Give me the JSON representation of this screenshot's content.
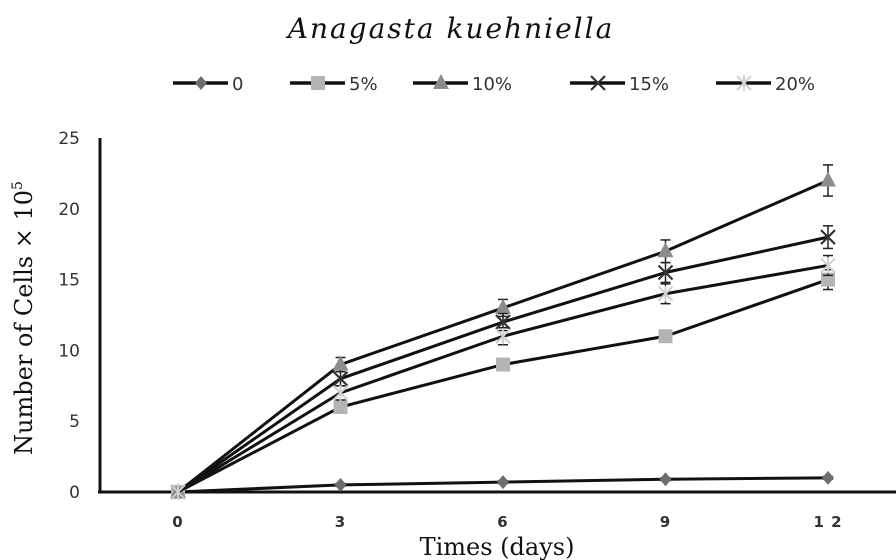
{
  "chart_data": {
    "type": "line",
    "title": "Anagasta kuehniella",
    "xlabel": "Times (days)",
    "ylabel": "Number of Cells × 10",
    "ylabel_sup": "5",
    "categories": [
      "0",
      "3",
      "6",
      "9",
      "1 2"
    ],
    "ylim": [
      0,
      25
    ],
    "yticks": [
      "0",
      "5",
      "10",
      "15",
      "20",
      "25"
    ],
    "legend_position": "top",
    "grid": false,
    "series": [
      {
        "name": "0",
        "marker": "diamond",
        "color": "#6e6e6e",
        "values": [
          0,
          0.5,
          0.7,
          0.9,
          1.0
        ],
        "errors": [
          0,
          0.1,
          0.1,
          0.1,
          0.1
        ]
      },
      {
        "name": "5%",
        "marker": "square",
        "color": "#b4b4b4",
        "values": [
          0,
          6,
          9,
          11,
          15
        ],
        "errors": [
          0,
          0.4,
          0.3,
          0.3,
          0.7
        ]
      },
      {
        "name": "10%",
        "marker": "triangle",
        "color": "#8c8c8c",
        "values": [
          0,
          9,
          13,
          17,
          22
        ],
        "errors": [
          0,
          0.5,
          0.6,
          0.8,
          1.1
        ]
      },
      {
        "name": "15%",
        "marker": "x",
        "color": "#333333",
        "values": [
          0,
          8,
          12,
          15.5,
          18
        ],
        "errors": [
          0,
          0.5,
          0.6,
          0.7,
          0.8
        ]
      },
      {
        "name": "20%",
        "marker": "star",
        "color": "#d0d0d0",
        "values": [
          0,
          7,
          11,
          14,
          16
        ],
        "errors": [
          0,
          0.5,
          0.6,
          0.7,
          0.7
        ]
      }
    ]
  }
}
